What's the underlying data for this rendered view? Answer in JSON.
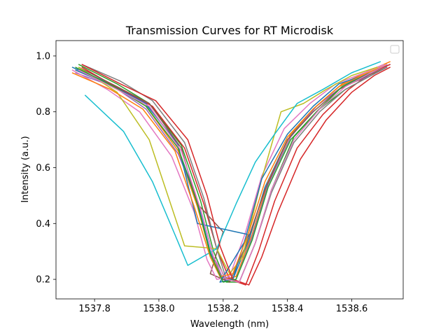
{
  "chart_data": {
    "type": "line",
    "title": "Transmission Curves for RT Microdisk",
    "xlabel": "Wavelength (nm)",
    "ylabel": "Intensity (a.u.)",
    "xlim": [
      1537.68,
      1538.76
    ],
    "ylim": [
      0.13,
      1.055
    ],
    "xticks": [
      1537.8,
      1538.0,
      1538.2,
      1538.4,
      1538.6
    ],
    "xtick_labels": [
      "1537.8",
      "1538.0",
      "1538.2",
      "1538.4",
      "1538.6"
    ],
    "yticks": [
      0.2,
      0.4,
      0.6,
      0.8,
      1.0
    ],
    "ytick_labels": [
      "0.2",
      "0.4",
      "0.6",
      "0.8",
      "1.0"
    ],
    "grid": false,
    "legend": {
      "placement": "top-right",
      "entries": []
    },
    "colors": [
      "#1f77b4",
      "#ff7f0e",
      "#2ca02c",
      "#d62728",
      "#9467bd",
      "#8c564b",
      "#e377c2",
      "#7f7f7f",
      "#bcbd22",
      "#17becf"
    ],
    "series": [
      {
        "color": "#1f77b4",
        "x": [
          1537.73,
          1537.85,
          1537.95,
          1538.05,
          1538.12,
          1538.16,
          1538.19,
          1538.23,
          1538.28,
          1538.33,
          1538.4,
          1538.48,
          1538.56,
          1538.66,
          1538.72
        ],
        "y": [
          0.96,
          0.9,
          0.84,
          0.7,
          0.48,
          0.3,
          0.21,
          0.2,
          0.34,
          0.53,
          0.7,
          0.81,
          0.89,
          0.94,
          0.97
        ]
      },
      {
        "color": "#ff7f0e",
        "x": [
          1537.74,
          1537.86,
          1537.96,
          1538.06,
          1538.12,
          1538.16,
          1538.2,
          1538.24,
          1538.29,
          1538.34,
          1538.41,
          1538.49,
          1538.57,
          1538.66,
          1538.72
        ],
        "y": [
          0.95,
          0.89,
          0.82,
          0.66,
          0.46,
          0.29,
          0.2,
          0.21,
          0.36,
          0.55,
          0.72,
          0.82,
          0.9,
          0.95,
          0.98
        ]
      },
      {
        "color": "#2ca02c",
        "x": [
          1537.75,
          1537.87,
          1537.97,
          1538.07,
          1538.13,
          1538.17,
          1538.21,
          1538.25,
          1538.3,
          1538.35,
          1538.42,
          1538.5,
          1538.58,
          1538.66,
          1538.71
        ],
        "y": [
          0.97,
          0.9,
          0.83,
          0.68,
          0.48,
          0.3,
          0.19,
          0.19,
          0.33,
          0.52,
          0.71,
          0.81,
          0.88,
          0.93,
          0.96
        ]
      },
      {
        "color": "#d62728",
        "x": [
          1537.76,
          1537.88,
          1537.98,
          1538.08,
          1538.14,
          1538.18,
          1538.22,
          1538.27,
          1538.31,
          1538.36,
          1538.43,
          1538.51,
          1538.59,
          1538.66,
          1538.72
        ],
        "y": [
          0.96,
          0.88,
          0.82,
          0.67,
          0.47,
          0.31,
          0.2,
          0.18,
          0.3,
          0.48,
          0.67,
          0.79,
          0.88,
          0.94,
          0.97
        ]
      },
      {
        "color": "#9467bd",
        "x": [
          1537.74,
          1537.86,
          1537.96,
          1538.06,
          1538.13,
          1538.17,
          1538.2,
          1538.24,
          1538.29,
          1538.34,
          1538.41,
          1538.49,
          1538.57,
          1538.66,
          1538.71
        ],
        "y": [
          0.94,
          0.89,
          0.81,
          0.65,
          0.45,
          0.28,
          0.2,
          0.2,
          0.35,
          0.54,
          0.71,
          0.82,
          0.89,
          0.93,
          0.96
        ]
      },
      {
        "color": "#8c564b",
        "x": [
          1537.75,
          1537.87,
          1537.97,
          1538.07,
          1538.12,
          1538.2,
          1538.16,
          1538.22,
          1538.27,
          1538.33,
          1538.4,
          1538.48,
          1538.56,
          1538.65,
          1538.71
        ],
        "y": [
          0.96,
          0.89,
          0.83,
          0.67,
          0.47,
          0.37,
          0.22,
          0.19,
          0.32,
          0.52,
          0.7,
          0.8,
          0.88,
          0.93,
          0.96
        ]
      },
      {
        "color": "#e377c2",
        "x": [
          1537.73,
          1537.84,
          1537.94,
          1538.04,
          1538.11,
          1538.15,
          1538.18,
          1538.22,
          1538.27,
          1538.32,
          1538.39,
          1538.47,
          1538.55,
          1538.64,
          1538.7
        ],
        "y": [
          0.95,
          0.88,
          0.8,
          0.64,
          0.44,
          0.27,
          0.2,
          0.21,
          0.37,
          0.57,
          0.74,
          0.83,
          0.9,
          0.94,
          0.97
        ]
      },
      {
        "color": "#7f7f7f",
        "x": [
          1537.76,
          1537.88,
          1537.98,
          1538.08,
          1538.14,
          1538.18,
          1538.21,
          1538.25,
          1538.3,
          1538.35,
          1538.42,
          1538.5,
          1538.58,
          1538.66,
          1538.71
        ],
        "y": [
          0.97,
          0.91,
          0.84,
          0.69,
          0.49,
          0.31,
          0.2,
          0.19,
          0.33,
          0.51,
          0.69,
          0.8,
          0.88,
          0.93,
          0.96
        ]
      },
      {
        "color": "#bcbd22",
        "x": [
          1537.75,
          1537.87,
          1537.97,
          1538.08,
          1538.18,
          1538.22,
          1538.26,
          1538.32,
          1538.38,
          1538.45,
          1538.52,
          1538.6,
          1538.68
        ],
        "y": [
          0.96,
          0.87,
          0.7,
          0.32,
          0.31,
          0.22,
          0.28,
          0.56,
          0.8,
          0.83,
          0.88,
          0.93,
          0.96
        ]
      },
      {
        "color": "#17becf",
        "x": [
          1537.77,
          1537.89,
          1537.98,
          1538.05,
          1538.09,
          1538.18,
          1538.24,
          1538.3,
          1538.36,
          1538.43,
          1538.51,
          1538.6,
          1538.69
        ],
        "y": [
          0.86,
          0.73,
          0.55,
          0.36,
          0.25,
          0.31,
          0.47,
          0.62,
          0.72,
          0.83,
          0.88,
          0.94,
          0.98
        ]
      },
      {
        "color": "#1f77b4",
        "x": [
          1537.74,
          1537.86,
          1537.96,
          1538.06,
          1538.12,
          1538.28,
          1538.19,
          1538.23,
          1538.27,
          1538.32,
          1538.4,
          1538.48,
          1538.56,
          1538.66,
          1538.71
        ],
        "y": [
          0.95,
          0.89,
          0.83,
          0.68,
          0.4,
          0.36,
          0.19,
          0.2,
          0.35,
          0.56,
          0.72,
          0.82,
          0.9,
          0.94,
          0.97
        ]
      },
      {
        "color": "#ff7f0e",
        "x": [
          1537.73,
          1537.85,
          1537.95,
          1538.05,
          1538.11,
          1538.16,
          1538.19,
          1538.23,
          1538.28,
          1538.33,
          1538.4,
          1538.48,
          1538.56,
          1538.65,
          1538.71
        ],
        "y": [
          0.94,
          0.88,
          0.81,
          0.66,
          0.46,
          0.28,
          0.21,
          0.22,
          0.37,
          0.55,
          0.71,
          0.81,
          0.89,
          0.94,
          0.97
        ]
      },
      {
        "color": "#d62728",
        "x": [
          1537.76,
          1537.88,
          1537.99,
          1538.09,
          1538.15,
          1538.19,
          1538.23,
          1538.28,
          1538.32,
          1538.37,
          1538.44,
          1538.52,
          1538.6,
          1538.67,
          1538.72
        ],
        "y": [
          0.97,
          0.9,
          0.84,
          0.7,
          0.5,
          0.32,
          0.2,
          0.18,
          0.28,
          0.44,
          0.63,
          0.77,
          0.87,
          0.93,
          0.96
        ]
      },
      {
        "color": "#2ca02c",
        "x": [
          1537.74,
          1537.86,
          1537.96,
          1538.06,
          1538.12,
          1538.16,
          1538.2,
          1538.24,
          1538.29,
          1538.34,
          1538.41,
          1538.49,
          1538.57,
          1538.66,
          1538.71
        ],
        "y": [
          0.96,
          0.89,
          0.82,
          0.67,
          0.47,
          0.29,
          0.19,
          0.2,
          0.34,
          0.53,
          0.7,
          0.8,
          0.89,
          0.94,
          0.97
        ]
      },
      {
        "color": "#e377c2",
        "x": [
          1537.75,
          1537.87,
          1537.97,
          1538.07,
          1538.13,
          1538.17,
          1538.21,
          1538.25,
          1538.3,
          1538.35,
          1538.42,
          1538.5,
          1538.58,
          1538.66,
          1538.71
        ],
        "y": [
          0.95,
          0.88,
          0.82,
          0.66,
          0.45,
          0.28,
          0.2,
          0.19,
          0.33,
          0.52,
          0.7,
          0.81,
          0.89,
          0.94,
          0.97
        ]
      }
    ]
  }
}
